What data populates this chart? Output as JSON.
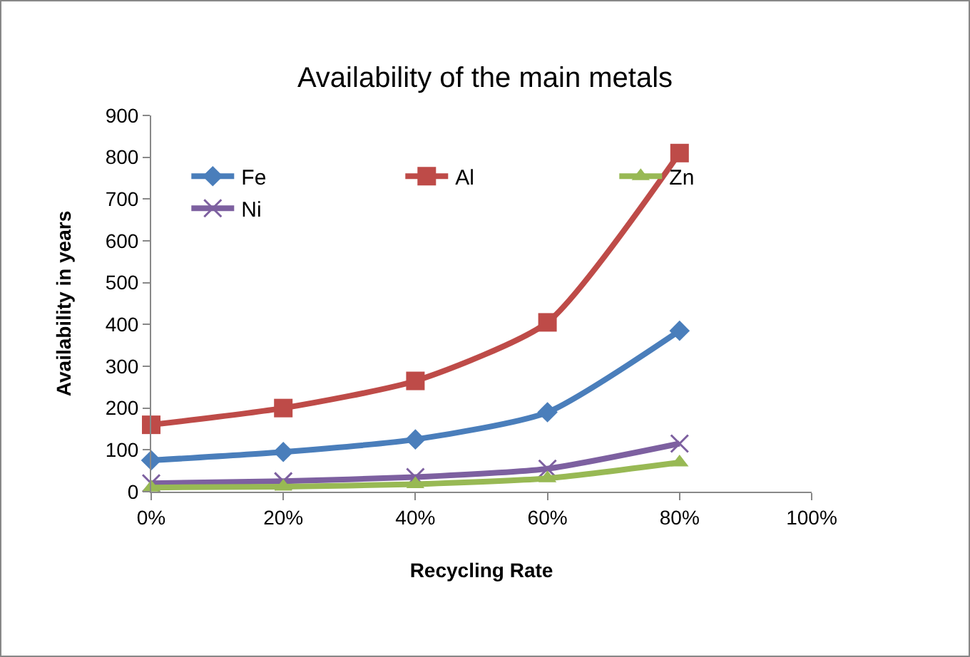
{
  "chart_data": {
    "type": "line",
    "title": "Availability of the main metals",
    "xlabel": "Recycling Rate",
    "ylabel": "Availability in years",
    "x": [
      0,
      20,
      40,
      60,
      80
    ],
    "series": [
      {
        "name": "Fe",
        "color": "#4a7ebb",
        "marker": "diamond",
        "values": [
          75,
          95,
          125,
          190,
          385
        ]
      },
      {
        "name": "Al",
        "color": "#be4b48",
        "marker": "square",
        "values": [
          160,
          200,
          265,
          405,
          810
        ]
      },
      {
        "name": "Zn",
        "color": "#98b954",
        "marker": "triangle",
        "values": [
          10,
          12,
          18,
          32,
          70
        ]
      },
      {
        "name": "Ni",
        "color": "#7d60a0",
        "marker": "cross",
        "values": [
          20,
          25,
          35,
          55,
          115
        ]
      }
    ],
    "xlim": [
      0,
      100
    ],
    "xticks": [
      {
        "value": 0,
        "label": "0%"
      },
      {
        "value": 20,
        "label": "20%"
      },
      {
        "value": 40,
        "label": "40%"
      },
      {
        "value": 60,
        "label": "60%"
      },
      {
        "value": 80,
        "label": "80%"
      },
      {
        "value": 100,
        "label": "100%"
      }
    ],
    "ylim": [
      0,
      900
    ],
    "yticks": [
      0,
      100,
      200,
      300,
      400,
      500,
      600,
      700,
      800,
      900
    ],
    "grid": false,
    "legend": "top left"
  }
}
